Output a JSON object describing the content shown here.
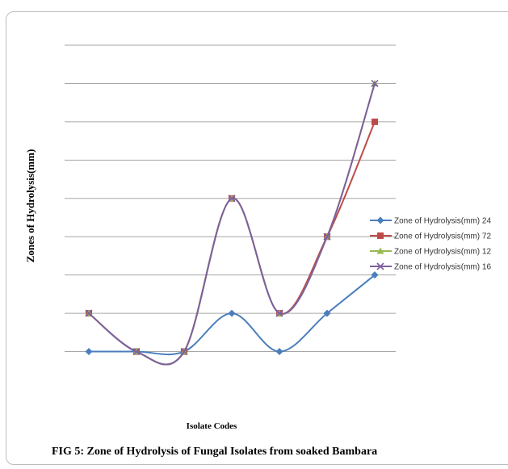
{
  "caption": "FIG 5: Zone of Hydrolysis of Fungal Isolates from soaked Bambara",
  "chart_data": {
    "type": "line",
    "title": "",
    "xlabel": "Isolate Codes",
    "ylabel": "Zones of Hydrolysis(mm)",
    "categories": [
      "",
      "",
      "",
      "",
      "",
      "",
      ""
    ],
    "ylim": [
      0,
      9
    ],
    "grid": true,
    "legend_position": "right",
    "series": [
      {
        "name": "Zone of Hydrolysis(mm) 24",
        "color": "#4a7ebb",
        "marker": "diamond",
        "values": [
          1,
          1,
          1,
          2,
          1,
          2,
          3
        ]
      },
      {
        "name": "Zone of Hydrolysis(mm) 72",
        "color": "#be4b48",
        "marker": "square",
        "values": [
          2,
          1,
          1,
          5,
          2,
          4,
          7
        ]
      },
      {
        "name": "Zone of Hydrolysis(mm) 12",
        "color": "#98b954",
        "marker": "triangle",
        "values": [
          2,
          1,
          1,
          5,
          2,
          4,
          8
        ]
      },
      {
        "name": "Zone of Hydrolysis(mm) 16",
        "color": "#7d60a0",
        "marker": "x",
        "values": [
          2,
          1,
          1,
          5,
          2,
          4,
          8
        ]
      }
    ]
  }
}
